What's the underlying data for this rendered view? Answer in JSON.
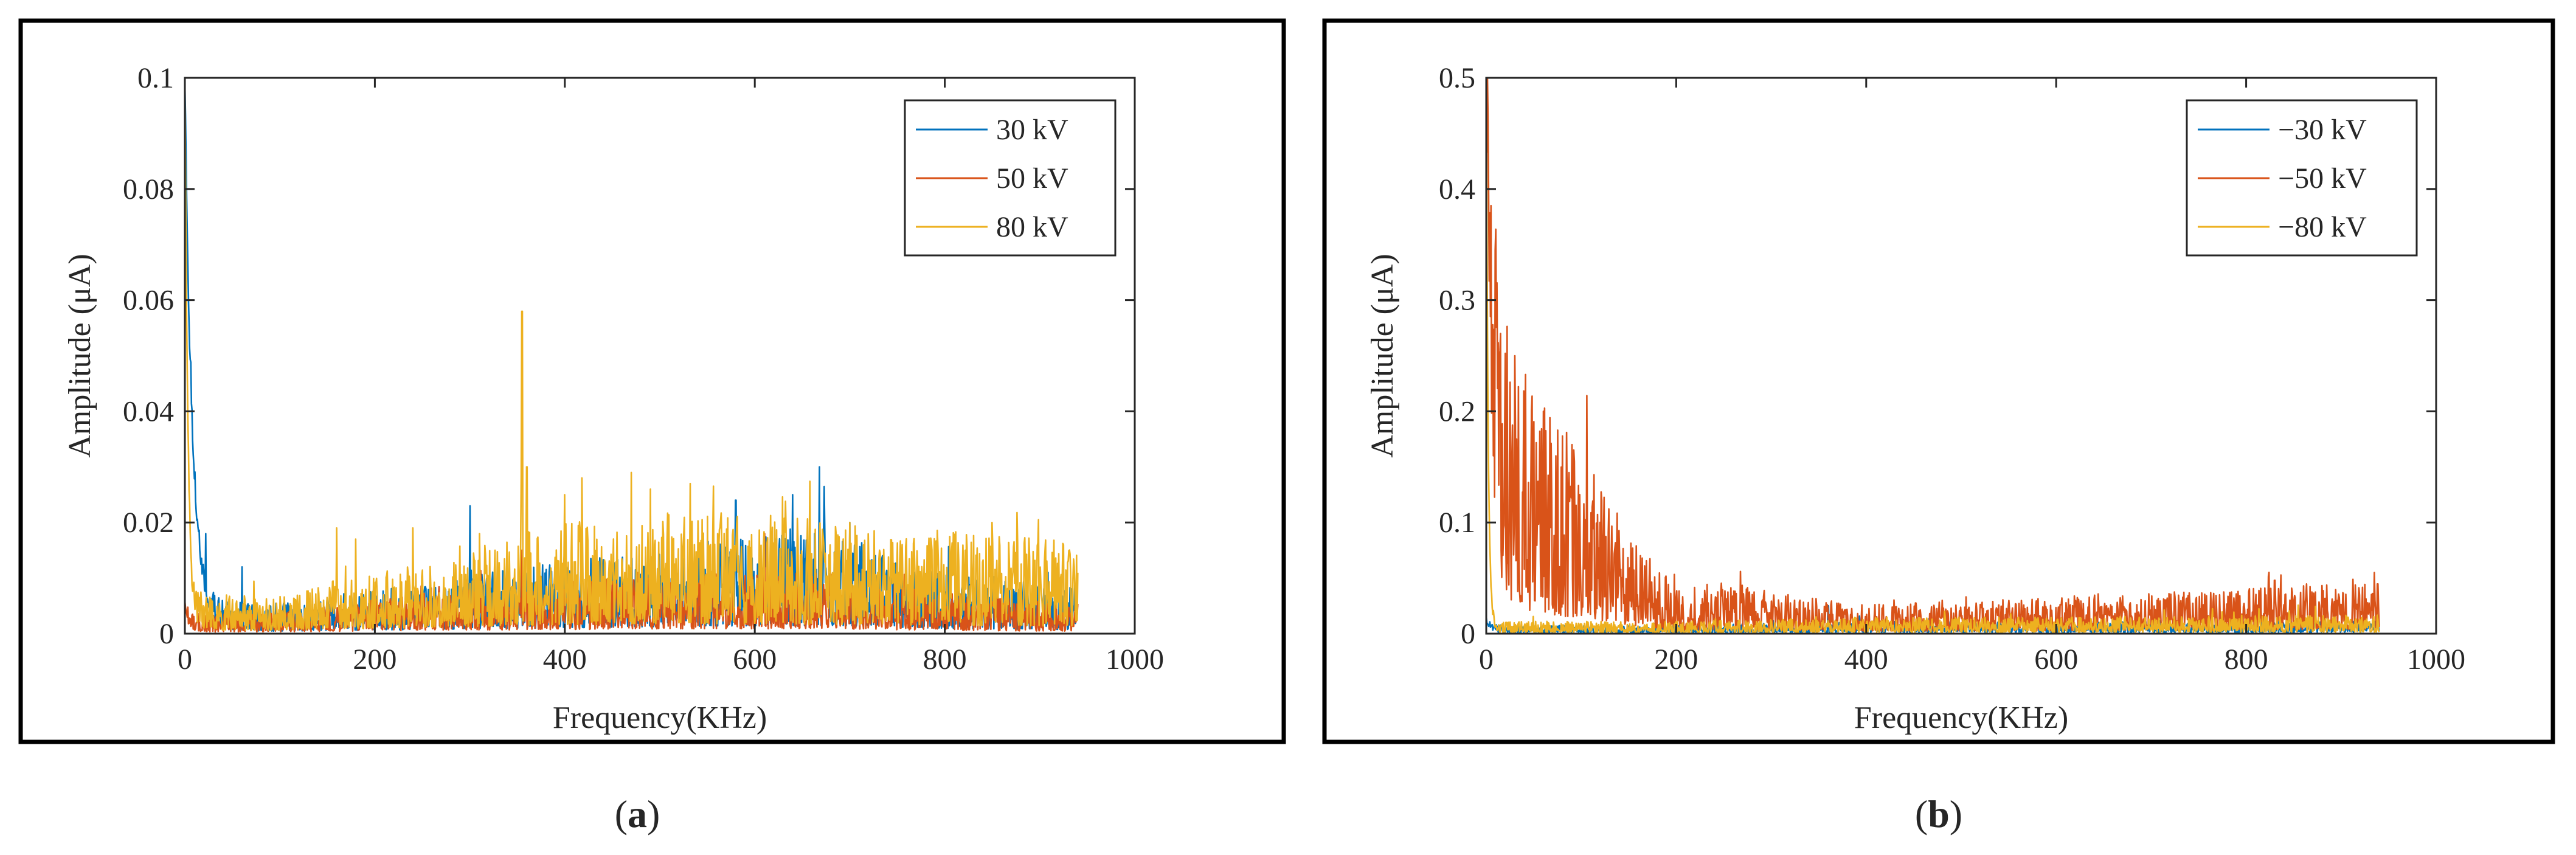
{
  "figure": {
    "panels": [
      {
        "caption_open": "(",
        "caption_letter": "a",
        "caption_close": ")"
      },
      {
        "caption_open": "(",
        "caption_letter": "b",
        "caption_close": ")"
      }
    ]
  },
  "chart_data": [
    {
      "type": "line",
      "title": "",
      "xlabel": "Frequency(KHz)",
      "ylabel": "Amplitude (μA)",
      "xlim": [
        0,
        1000
      ],
      "ylim": [
        0,
        0.1
      ],
      "xticks": [
        0,
        200,
        400,
        600,
        800,
        1000
      ],
      "xtick_labels": [
        "0",
        "200",
        "400",
        "600",
        "800",
        "1000"
      ],
      "yticks": [
        0,
        0.02,
        0.04,
        0.06,
        0.08,
        0.1
      ],
      "ytick_labels": [
        "0",
        "0.02",
        "0.04",
        "0.06",
        "0.08",
        "0.1"
      ],
      "grid": false,
      "legend_position": "top-right",
      "x_max_data": 940,
      "series": [
        {
          "name": "30 kV",
          "color": "#0072BD",
          "start_peak": 0.095,
          "decay_khz": 8,
          "noise_profile": [
            [
              0,
              0.003
            ],
            [
              100,
              0.003
            ],
            [
              250,
              0.005
            ],
            [
              400,
              0.007
            ],
            [
              550,
              0.009
            ],
            [
              680,
              0.01
            ],
            [
              800,
              0.006
            ],
            [
              940,
              0.005
            ]
          ],
          "spikes": [
            [
              22,
              0.018
            ],
            [
              60,
              0.012
            ],
            [
              300,
              0.023
            ],
            [
              580,
              0.024
            ],
            [
              640,
              0.025
            ],
            [
              668,
              0.03
            ],
            [
              700,
              0.02
            ]
          ]
        },
        {
          "name": "50 kV",
          "color": "#D95319",
          "start_peak": 0.003,
          "decay_khz": 5,
          "noise_profile": [
            [
              0,
              0.002
            ],
            [
              100,
              0.002
            ],
            [
              250,
              0.004
            ],
            [
              400,
              0.005
            ],
            [
              550,
              0.006
            ],
            [
              680,
              0.006
            ],
            [
              800,
              0.004
            ],
            [
              940,
              0.003
            ]
          ],
          "spikes": [
            [
              355,
              0.015
            ],
            [
              470,
              0.012
            ],
            [
              610,
              0.018
            ]
          ]
        },
        {
          "name": "80 kV",
          "color": "#EDB120",
          "start_peak": 0.1,
          "decay_khz": 3,
          "noise_profile": [
            [
              0,
              0.004
            ],
            [
              100,
              0.004
            ],
            [
              250,
              0.007
            ],
            [
              400,
              0.011
            ],
            [
              550,
              0.012
            ],
            [
              680,
              0.011
            ],
            [
              800,
              0.01
            ],
            [
              940,
              0.009
            ]
          ],
          "spikes": [
            [
              160,
              0.019
            ],
            [
              180,
              0.017
            ],
            [
              240,
              0.019
            ],
            [
              310,
              0.018
            ],
            [
              355,
              0.058
            ],
            [
              360,
              0.03
            ],
            [
              400,
              0.025
            ],
            [
              418,
              0.028
            ],
            [
              470,
              0.029
            ],
            [
              490,
              0.026
            ],
            [
              532,
              0.027
            ],
            [
              700,
              0.02
            ],
            [
              850,
              0.02
            ],
            [
              925,
              0.016
            ]
          ]
        }
      ]
    },
    {
      "type": "line",
      "title": "",
      "xlabel": "Frequency(KHz)",
      "ylabel": "Amplitude (μA)",
      "xlim": [
        0,
        1000
      ],
      "ylim": [
        0,
        0.5
      ],
      "xticks": [
        0,
        200,
        400,
        600,
        800,
        1000
      ],
      "xtick_labels": [
        "0",
        "200",
        "400",
        "600",
        "800",
        "1000"
      ],
      "yticks": [
        0,
        0.1,
        0.2,
        0.3,
        0.4,
        0.5
      ],
      "ytick_labels": [
        "0",
        "0.1",
        "0.2",
        "0.3",
        "0.4",
        "0.5"
      ],
      "grid": false,
      "legend_position": "top-right",
      "x_max_data": 940,
      "series": [
        {
          "name": "−30 kV",
          "color": "#0072BD",
          "start_peak": 0.01,
          "decay_khz": 5,
          "noise_profile": [
            [
              0,
              0.004
            ],
            [
              200,
              0.004
            ],
            [
              400,
              0.006
            ],
            [
              600,
              0.006
            ],
            [
              800,
              0.006
            ],
            [
              940,
              0.006
            ]
          ],
          "spikes": [
            [
              360,
              0.025
            ]
          ]
        },
        {
          "name": "−50 kV",
          "color": "#D95319",
          "start_peak": 0.38,
          "decay_khz": 6,
          "noise_profile": [
            [
              0,
              0.19
            ],
            [
              50,
              0.13
            ],
            [
              100,
              0.09
            ],
            [
              150,
              0.05
            ],
            [
              200,
              0.022
            ],
            [
              260,
              0.026
            ],
            [
              300,
              0.02
            ],
            [
              400,
              0.014
            ],
            [
              600,
              0.018
            ],
            [
              800,
              0.022
            ],
            [
              940,
              0.025
            ]
          ],
          "spikes": [
            [
              5,
              0.385
            ],
            [
              15,
              0.27
            ],
            [
              30,
              0.25
            ],
            [
              60,
              0.2
            ],
            [
              90,
              0.17
            ],
            [
              480,
              0.03
            ],
            [
              830,
              0.048
            ],
            [
              935,
              0.055
            ]
          ]
        },
        {
          "name": "−80 kV",
          "color": "#EDB120",
          "start_peak": 0.5,
          "decay_khz": 2,
          "noise_profile": [
            [
              0,
              0.006
            ],
            [
              200,
              0.006
            ],
            [
              400,
              0.008
            ],
            [
              600,
              0.008
            ],
            [
              800,
              0.009
            ],
            [
              940,
              0.009
            ]
          ],
          "spikes": []
        }
      ]
    }
  ]
}
